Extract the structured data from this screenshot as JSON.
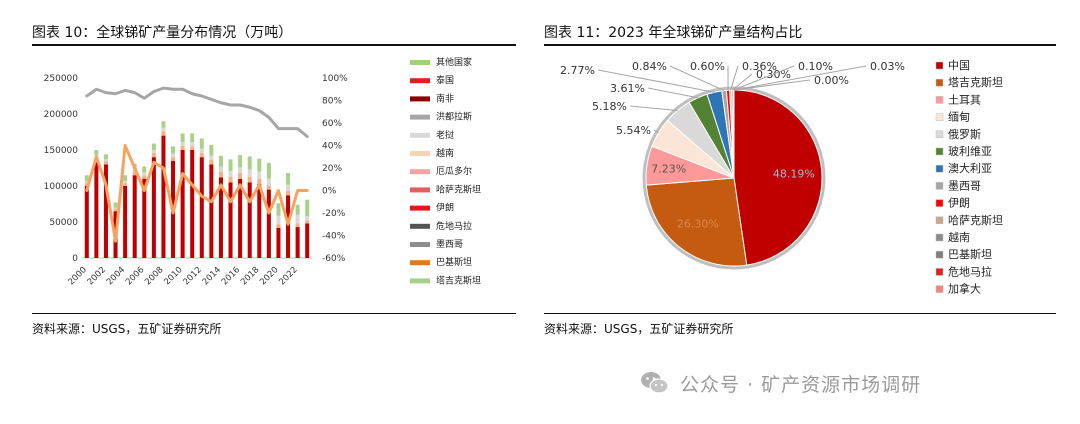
{
  "left": {
    "title": "图表 10：全球锑矿产量分布情况（万吨）",
    "source": "资料来源：USGS，五矿证券研究所"
  },
  "right": {
    "title": "图表 11：2023 年全球锑矿产量结构占比",
    "source": "资料来源：USGS，五矿证券研究所"
  },
  "watermark": {
    "text": "公众号 · 矿产资源市场调研",
    "icon": "wechat-icon"
  },
  "chart_data": [
    {
      "type": "bar",
      "stacked": true,
      "categories": [
        "2000",
        "2001",
        "2002",
        "2003",
        "2004",
        "2005",
        "2006",
        "2007",
        "2008",
        "2009",
        "2010",
        "2011",
        "2012",
        "2013",
        "2014",
        "2015",
        "2016",
        "2017",
        "2018",
        "2019",
        "2020",
        "2021",
        "2022",
        "2023"
      ],
      "x_tick_labels": [
        "2000",
        "2002",
        "2004",
        "2006",
        "2008",
        "2010",
        "2012",
        "2014",
        "2016",
        "2018",
        "2020",
        "2022"
      ],
      "ylim": [
        0,
        250000
      ],
      "y_ticks": [
        "0",
        "50000",
        "100000",
        "150000",
        "200000",
        "250000"
      ],
      "y2lim": [
        -60,
        100
      ],
      "y2_ticks": [
        "-60%",
        "-40%",
        "-20%",
        "0%",
        "20%",
        "40%",
        "60%",
        "80%",
        "100%"
      ],
      "legend": [
        "其他国家",
        "泰国",
        "南非",
        "洪都拉斯",
        "老挝",
        "越南",
        "厄瓜多尔",
        "哈萨克斯坦",
        "伊朗",
        "危地马拉",
        "墨西哥",
        "巴基斯坦",
        "塔吉克斯坦"
      ],
      "legend_colors": [
        "#9fd17f",
        "#e02020",
        "#8b0000",
        "#a6a6a6",
        "#d9d9d9",
        "#f8d4b0",
        "#f4a3a3",
        "#e06060",
        "#e8141e",
        "#555555",
        "#8c8c8c",
        "#e07b20",
        "#a8d08d"
      ],
      "series": [
        {
          "color": "#c00000",
          "values": [
            100000,
            135000,
            130000,
            65000,
            100000,
            115000,
            110000,
            140000,
            170000,
            135000,
            150000,
            150000,
            140000,
            130000,
            112000,
            105000,
            110000,
            105000,
            103000,
            95000,
            42000,
            87000,
            43000,
            48000
          ]
        },
        {
          "color": "#f4b183",
          "values": [
            4000,
            5000,
            4000,
            3000,
            4000,
            5000,
            5000,
            6000,
            6000,
            5000,
            6000,
            5000,
            6000,
            6000,
            8000,
            8000,
            8000,
            8000,
            7000,
            6000,
            5000,
            6000,
            5000,
            4000
          ]
        },
        {
          "color": "#d9d9d9",
          "values": [
            3000,
            3000,
            3000,
            2000,
            3000,
            3000,
            4000,
            4000,
            5000,
            5000,
            5000,
            6000,
            6000,
            6000,
            7000,
            8000,
            8000,
            10000,
            10000,
            9000,
            12000,
            9000,
            12000,
            6000
          ]
        },
        {
          "color": "#a9d18e",
          "values": [
            8000,
            7000,
            7000,
            7000,
            8000,
            8000,
            8000,
            9000,
            9000,
            10000,
            12000,
            12000,
            14000,
            15000,
            15000,
            16000,
            17000,
            18000,
            18000,
            22000,
            17000,
            16000,
            14000,
            23000
          ]
        }
      ],
      "share_of_china": [
        84,
        90,
        87,
        86,
        89,
        87,
        82,
        88,
        91,
        90,
        90,
        86,
        84,
        81,
        78,
        76,
        76,
        74,
        71,
        65,
        55,
        55,
        55,
        48
      ],
      "yoy_growth": [
        0,
        30,
        5,
        -45,
        40,
        20,
        0,
        25,
        20,
        -20,
        15,
        5,
        -5,
        -10,
        5,
        -10,
        5,
        -10,
        5,
        -20,
        0,
        -30,
        0,
        0
      ]
    },
    {
      "type": "pie",
      "categories": [
        "中国",
        "塔吉克斯坦",
        "土耳其",
        "缅甸",
        "俄罗斯",
        "玻利维亚",
        "澳大利亚",
        "墨西哥",
        "伊朗",
        "哈萨克斯坦",
        "越南",
        "巴基斯坦",
        "危地马拉",
        "加拿大"
      ],
      "values": [
        48.19,
        26.3,
        7.23,
        5.54,
        5.18,
        3.61,
        2.77,
        0.84,
        0.6,
        0.36,
        0.3,
        0.1,
        0.03,
        0.0
      ],
      "value_labels": [
        "48.19%",
        "26.30%",
        "7.23%",
        "5.54%",
        "5.18%",
        "3.61%",
        "2.77%",
        "0.84%",
        "0.60%",
        "0.36%",
        "0.30%",
        "0.10%",
        "0.03%",
        "0.00%"
      ],
      "colors": [
        "#c00000",
        "#c55a11",
        "#ff9999",
        "#fbe5d6",
        "#d9d9d9",
        "#548235",
        "#2e75b6",
        "#a6a6a6",
        "#ff0000",
        "#c8a888",
        "#8c8c8c",
        "#7f7f7f",
        "#e02020",
        "#ff8080"
      ]
    }
  ]
}
